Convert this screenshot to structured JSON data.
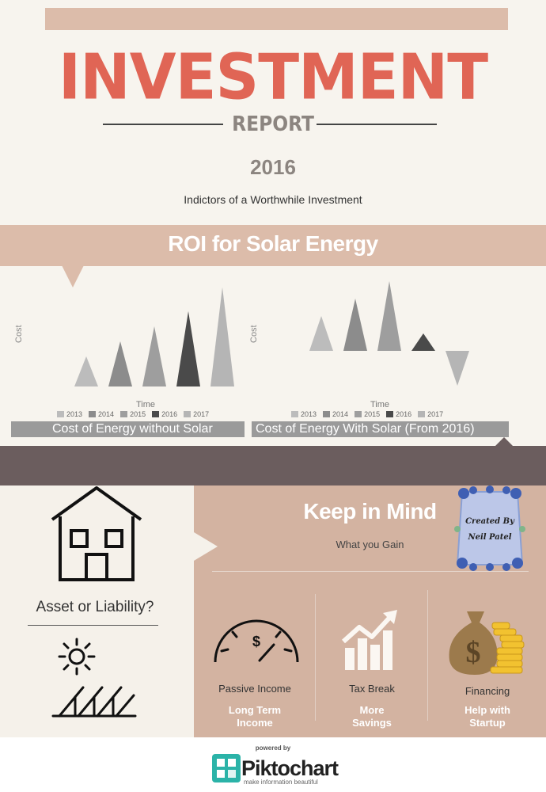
{
  "header": {
    "title": "INVESTMENT",
    "subtitle_word": "REPORT",
    "year": "2016",
    "tagline": "Indictors of a Worthwhile Investment"
  },
  "roi_section": {
    "title": "ROI for Solar Energy"
  },
  "chart_data": [
    {
      "type": "bar",
      "categories": [
        "2013",
        "2014",
        "2015",
        "2016",
        "2017"
      ],
      "values": [
        1,
        1.5,
        2,
        2.5,
        3.3
      ],
      "ylabel": "Cost",
      "xlabel": "Time",
      "legend": [
        "2013",
        "2014",
        "2015",
        "2016",
        "2017"
      ],
      "caption": "Cost of Energy without Solar",
      "colors": [
        "#bcbcbc",
        "#8c8c8c",
        "#9e9e9e",
        "#4a4a4a",
        "#b5b5b5"
      ]
    },
    {
      "type": "bar",
      "categories": [
        "2013",
        "2014",
        "2015",
        "2016",
        "2017"
      ],
      "values": [
        1,
        1.5,
        2,
        0.5,
        -1
      ],
      "ylabel": "Cost",
      "xlabel": "Time",
      "legend": [
        "2013",
        "2014",
        "2015",
        "2016",
        "2017"
      ],
      "caption": "Cost of Energy With Solar (From 2016)",
      "colors": [
        "#bcbcbc",
        "#8c8c8c",
        "#9e9e9e",
        "#4a4a4a",
        "#b5b5b5"
      ]
    }
  ],
  "keep_in_mind": {
    "title": "Keep in Mind",
    "subtitle": "What you Gain",
    "badge_text": "Created By Neil Patel"
  },
  "left_panel": {
    "question": "Asset or Liability?"
  },
  "benefits": [
    {
      "title": "Passive Income",
      "sub_line1": "Long Term",
      "sub_line2": "Income",
      "icon": "speedometer-dollar-icon"
    },
    {
      "title": "Tax Break",
      "sub_line1": "More",
      "sub_line2": "Savings",
      "icon": "growth-chart-icon"
    },
    {
      "title": "Financing",
      "sub_line1": "Help with",
      "sub_line2": "Startup",
      "icon": "money-bag-coins-icon"
    }
  ],
  "footer": {
    "powered_by": "powered by",
    "brand": "Piktochart",
    "tagline": "make information beautiful"
  }
}
